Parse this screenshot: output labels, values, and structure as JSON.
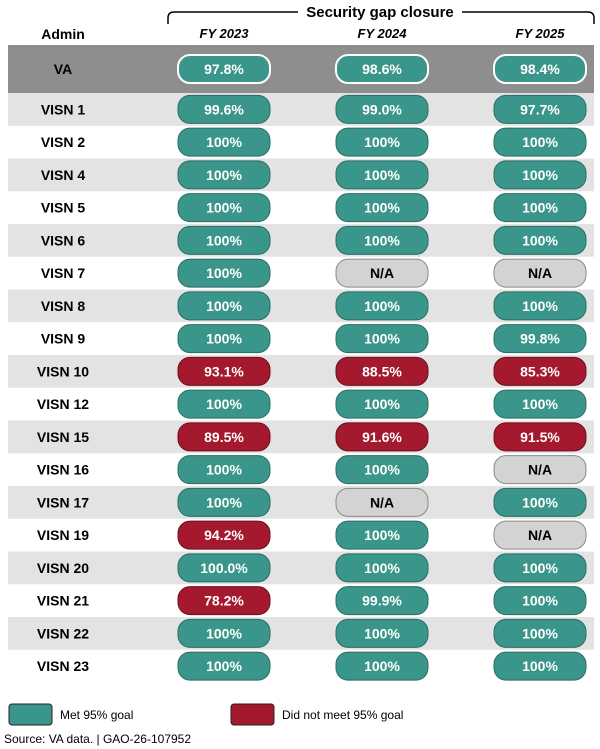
{
  "chart_data": {
    "type": "table",
    "title": "Security gap closure",
    "row_header": "Admin",
    "columns": [
      "FY 2023",
      "FY 2024",
      "FY 2025"
    ],
    "rows": [
      {
        "admin": "VA",
        "values": [
          "97.8%",
          "98.6%",
          "98.4%"
        ],
        "status": [
          "met",
          "met",
          "met"
        ]
      },
      {
        "admin": "VISN 1",
        "values": [
          "99.6%",
          "99.0%",
          "97.7%"
        ],
        "status": [
          "met",
          "met",
          "met"
        ]
      },
      {
        "admin": "VISN 2",
        "values": [
          "100%",
          "100%",
          "100%"
        ],
        "status": [
          "met",
          "met",
          "met"
        ]
      },
      {
        "admin": "VISN 4",
        "values": [
          "100%",
          "100%",
          "100%"
        ],
        "status": [
          "met",
          "met",
          "met"
        ]
      },
      {
        "admin": "VISN 5",
        "values": [
          "100%",
          "100%",
          "100%"
        ],
        "status": [
          "met",
          "met",
          "met"
        ]
      },
      {
        "admin": "VISN 6",
        "values": [
          "100%",
          "100%",
          "100%"
        ],
        "status": [
          "met",
          "met",
          "met"
        ]
      },
      {
        "admin": "VISN 7",
        "values": [
          "100%",
          "N/A",
          "N/A"
        ],
        "status": [
          "met",
          "na",
          "na"
        ]
      },
      {
        "admin": "VISN 8",
        "values": [
          "100%",
          "100%",
          "100%"
        ],
        "status": [
          "met",
          "met",
          "met"
        ]
      },
      {
        "admin": "VISN 9",
        "values": [
          "100%",
          "100%",
          "99.8%"
        ],
        "status": [
          "met",
          "met",
          "met"
        ]
      },
      {
        "admin": "VISN 10",
        "values": [
          "93.1%",
          "88.5%",
          "85.3%"
        ],
        "status": [
          "not_met",
          "not_met",
          "not_met"
        ]
      },
      {
        "admin": "VISN 12",
        "values": [
          "100%",
          "100%",
          "100%"
        ],
        "status": [
          "met",
          "met",
          "met"
        ]
      },
      {
        "admin": "VISN 15",
        "values": [
          "89.5%",
          "91.6%",
          "91.5%"
        ],
        "status": [
          "not_met",
          "not_met",
          "not_met"
        ]
      },
      {
        "admin": "VISN 16",
        "values": [
          "100%",
          "100%",
          "N/A"
        ],
        "status": [
          "met",
          "met",
          "na"
        ]
      },
      {
        "admin": "VISN 17",
        "values": [
          "100%",
          "N/A",
          "100%"
        ],
        "status": [
          "met",
          "na",
          "met"
        ]
      },
      {
        "admin": "VISN 19",
        "values": [
          "94.2%",
          "100%",
          "N/A"
        ],
        "status": [
          "not_met",
          "met",
          "na"
        ]
      },
      {
        "admin": "VISN 20",
        "values": [
          "100.0%",
          "100%",
          "100%"
        ],
        "status": [
          "met",
          "met",
          "met"
        ]
      },
      {
        "admin": "VISN 21",
        "values": [
          "78.2%",
          "99.9%",
          "100%"
        ],
        "status": [
          "not_met",
          "met",
          "met"
        ]
      },
      {
        "admin": "VISN 22",
        "values": [
          "100%",
          "100%",
          "100%"
        ],
        "status": [
          "met",
          "met",
          "met"
        ]
      },
      {
        "admin": "VISN 23",
        "values": [
          "100%",
          "100%",
          "100%"
        ],
        "status": [
          "met",
          "met",
          "met"
        ]
      }
    ],
    "legend": [
      {
        "key": "met",
        "label": "Met 95% goal",
        "color": "#3a968a"
      },
      {
        "key": "not_met",
        "label": "Did not meet 95% goal",
        "color": "#a5192e"
      }
    ],
    "source": "Source: VA data.  |  GAO-26-107952"
  },
  "colors": {
    "met": "#3a968a",
    "not_met": "#a5192e",
    "na": "#d3d3d3",
    "row_shade": "#e3e3e3",
    "va_row": "#8e8e8e"
  }
}
